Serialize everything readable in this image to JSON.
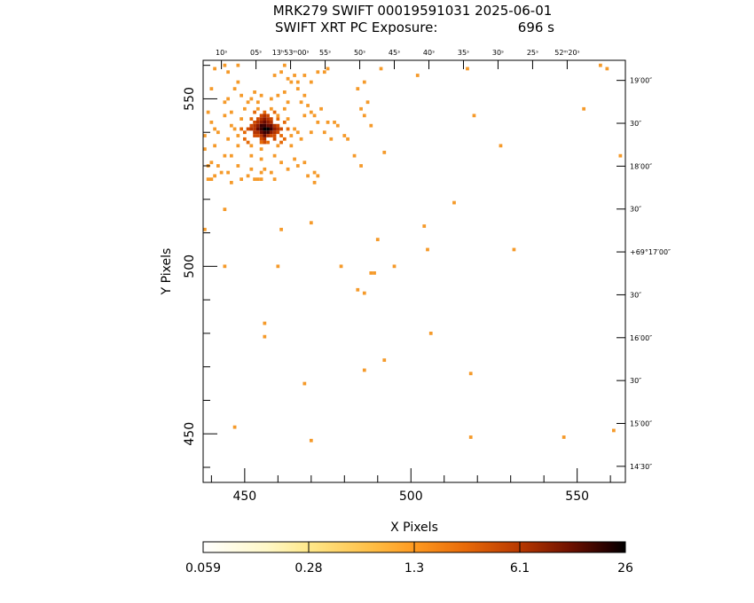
{
  "chart_data": {
    "type": "heatmap",
    "title": "MRK279 SWIFT 00019591031 2025-06-01",
    "subtitle_label": "SWIFT XRT PC Exposure:",
    "subtitle_value": "696 s",
    "xlabel": "X Pixels",
    "ylabel": "Y Pixels",
    "xlim": [
      437.5,
      564.5
    ],
    "ylim": [
      435.5,
      561.5
    ],
    "x_ticks": [
      450,
      500,
      550
    ],
    "y_ticks": [
      450,
      500,
      550
    ],
    "ra_labels": [
      {
        "x": 443,
        "text": "10ˢ"
      },
      {
        "x": 453.4,
        "text": "05ˢ"
      },
      {
        "x": 463.8,
        "text": "13ʰ53ᵐ00ˢ"
      },
      {
        "x": 474.2,
        "text": "55ˢ"
      },
      {
        "x": 484.6,
        "text": "50ˢ"
      },
      {
        "x": 495,
        "text": "45ˢ"
      },
      {
        "x": 505.4,
        "text": "40ˢ"
      },
      {
        "x": 515.8,
        "text": "35ˢ"
      },
      {
        "x": 526.2,
        "text": "30ˢ"
      },
      {
        "x": 536.6,
        "text": "25ˢ"
      },
      {
        "x": 547,
        "text": "52ᵐ20ˢ"
      }
    ],
    "dec_labels": [
      {
        "y": 555.5,
        "text": "19′00″"
      },
      {
        "y": 542.7,
        "text": "30″"
      },
      {
        "y": 529.9,
        "text": "18′00″"
      },
      {
        "y": 517.1,
        "text": "30″"
      },
      {
        "y": 504.3,
        "text": "+69°17′00″"
      },
      {
        "y": 491.5,
        "text": "30″"
      },
      {
        "y": 478.7,
        "text": "16′00″"
      },
      {
        "y": 465.9,
        "text": "30″"
      },
      {
        "y": 453.1,
        "text": "15′00″"
      },
      {
        "y": 440.3,
        "text": "14′30″"
      }
    ],
    "source_center": [
      456,
      541
    ],
    "colorbar": {
      "labels": [
        "0.059",
        "0.28",
        "1.3",
        "6.1",
        "26"
      ],
      "colors": [
        "#ffffff",
        "#fff0a0",
        "#ffc24a",
        "#ff8a1a",
        "#d94d00",
        "#8a1a00",
        "#3a0000",
        "#000000"
      ]
    },
    "pixels": [
      [
        456,
        541,
        26
      ],
      [
        457,
        541,
        20
      ],
      [
        456,
        542,
        18
      ],
      [
        455,
        541,
        14
      ],
      [
        457,
        540,
        14
      ],
      [
        456,
        540,
        12
      ],
      [
        455,
        542,
        11
      ],
      [
        458,
        541,
        10
      ],
      [
        456,
        543,
        8
      ],
      [
        454,
        541,
        7
      ],
      [
        457,
        542,
        8
      ],
      [
        455,
        540,
        7
      ],
      [
        458,
        542,
        6
      ],
      [
        454,
        542,
        5
      ],
      [
        456,
        539,
        6
      ],
      [
        458,
        540,
        5
      ],
      [
        459,
        541,
        4
      ],
      [
        453,
        541,
        3
      ],
      [
        456,
        544,
        4
      ],
      [
        455,
        543,
        4
      ],
      [
        457,
        543,
        4
      ],
      [
        455,
        539,
        3
      ],
      [
        457,
        539,
        3
      ],
      [
        459,
        542,
        3
      ],
      [
        453,
        542,
        2.5
      ],
      [
        454,
        540,
        3
      ],
      [
        458,
        543,
        3
      ],
      [
        454,
        543,
        2.5
      ],
      [
        459,
        540,
        2.5
      ],
      [
        460,
        541,
        2
      ],
      [
        452,
        541,
        2
      ],
      [
        456,
        545,
        2
      ],
      [
        456,
        538,
        2
      ],
      [
        455,
        544,
        2
      ],
      [
        457,
        544,
        2
      ],
      [
        453,
        540,
        2
      ],
      [
        459,
        539,
        1.8
      ],
      [
        455,
        538,
        1.8
      ],
      [
        458,
        539,
        1.8
      ],
      [
        454,
        539,
        1.8
      ],
      [
        460,
        542,
        1.6
      ],
      [
        452,
        542,
        1.6
      ],
      [
        460,
        540,
        1.5
      ],
      [
        453,
        543,
        1.5
      ],
      [
        458,
        544,
        1.5
      ],
      [
        454,
        544,
        1.5
      ],
      [
        457,
        545,
        1.4
      ],
      [
        455,
        545,
        1.4
      ],
      [
        461,
        541,
        1.3
      ],
      [
        451,
        541,
        1.3
      ],
      [
        456,
        537,
        1.3
      ],
      [
        453,
        539,
        1.2
      ],
      [
        459,
        538,
        1.2
      ],
      [
        457,
        537,
        1.1
      ],
      [
        455,
        537,
        1.1
      ],
      [
        461,
        539,
        1.1
      ],
      [
        450,
        540,
        1.0
      ],
      [
        462,
        543,
        1.0
      ],
      [
        452,
        544,
        1.0
      ],
      [
        460,
        544,
        1.0
      ],
      [
        459,
        546,
        0.9
      ],
      [
        453,
        546,
        0.9
      ],
      [
        456,
        546,
        0.9
      ],
      [
        461,
        537,
        0.9
      ],
      [
        451,
        537,
        0.9
      ],
      [
        449,
        541,
        0.8
      ],
      [
        463,
        541,
        0.8
      ],
      [
        450,
        538,
        0.8
      ],
      [
        462,
        538,
        0.8
      ],
      [
        448,
        539,
        0.7
      ],
      [
        464,
        539,
        0.7
      ],
      [
        452,
        536,
        0.7
      ],
      [
        460,
        536,
        0.7
      ],
      [
        449,
        544,
        0.7
      ],
      [
        463,
        544,
        0.7
      ],
      [
        454,
        547,
        0.6
      ],
      [
        458,
        547,
        0.6
      ],
      [
        447,
        541,
        0.6
      ],
      [
        465,
        541,
        0.6
      ],
      [
        455,
        535,
        0.6
      ],
      [
        446,
        542,
        0.5
      ],
      [
        466,
        540,
        0.5
      ],
      [
        448,
        536,
        0.5
      ],
      [
        464,
        536,
        0.5
      ],
      [
        450,
        547,
        0.5
      ],
      [
        462,
        547,
        0.5
      ],
      [
        452,
        533,
        0.5
      ],
      [
        459,
        533,
        0.5
      ],
      [
        455,
        532,
        0.5
      ],
      [
        465,
        532,
        0.5
      ],
      [
        445,
        538,
        0.5
      ],
      [
        467,
        538,
        0.5
      ],
      [
        444,
        545,
        0.5
      ],
      [
        468,
        545,
        0.5
      ],
      [
        442,
        540,
        0.5
      ],
      [
        470,
        540,
        0.5
      ],
      [
        441,
        536,
        0.5
      ],
      [
        446,
        533,
        0.5
      ],
      [
        448,
        530,
        0.5
      ],
      [
        452,
        529,
        0.5
      ],
      [
        455,
        528,
        0.5
      ],
      [
        458,
        528,
        0.5
      ],
      [
        461,
        531,
        0.5
      ],
      [
        463,
        529,
        0.5
      ],
      [
        466,
        530,
        0.5
      ],
      [
        468,
        531,
        0.5
      ],
      [
        469,
        527,
        0.5
      ],
      [
        471,
        528,
        0.5
      ],
      [
        444,
        533,
        0.5
      ],
      [
        440,
        531,
        0.5
      ],
      [
        439,
        530,
        0.5
      ],
      [
        442,
        530,
        0.5
      ],
      [
        441,
        527,
        0.5
      ],
      [
        439,
        526,
        0.5
      ],
      [
        440,
        526,
        0.5
      ],
      [
        443,
        528,
        0.5
      ],
      [
        445,
        528,
        0.5
      ],
      [
        446,
        525,
        0.5
      ],
      [
        449,
        526,
        0.5
      ],
      [
        451,
        527,
        0.5
      ],
      [
        453,
        526,
        0.5
      ],
      [
        454,
        526,
        0.5
      ],
      [
        455,
        526,
        0.5
      ],
      [
        456,
        529,
        0.5
      ],
      [
        459,
        526,
        0.5
      ],
      [
        438,
        539,
        0.5
      ],
      [
        438,
        535,
        0.5
      ],
      [
        440,
        543,
        0.5
      ],
      [
        441,
        541,
        0.5
      ],
      [
        439,
        546,
        0.5
      ],
      [
        444,
        549,
        0.5
      ],
      [
        445,
        550,
        0.5
      ],
      [
        446,
        546,
        0.5
      ],
      [
        447,
        553,
        0.5
      ],
      [
        448,
        555,
        0.5
      ],
      [
        449,
        551,
        0.5
      ],
      [
        451,
        549,
        0.5
      ],
      [
        452,
        550,
        0.5
      ],
      [
        453,
        552,
        0.5
      ],
      [
        454,
        549,
        0.5
      ],
      [
        455,
        551,
        0.5
      ],
      [
        458,
        550,
        0.5
      ],
      [
        460,
        551,
        0.5
      ],
      [
        462,
        552,
        0.5
      ],
      [
        463,
        549,
        0.5
      ],
      [
        464,
        555,
        0.5
      ],
      [
        465,
        557,
        0.5
      ],
      [
        466,
        553,
        0.5
      ],
      [
        467,
        549,
        0.5
      ],
      [
        468,
        551,
        0.5
      ],
      [
        469,
        548,
        0.5
      ],
      [
        470,
        546,
        0.5
      ],
      [
        471,
        545,
        0.5
      ],
      [
        472,
        543,
        0.5
      ],
      [
        473,
        547,
        0.5
      ],
      [
        474,
        540,
        0.5
      ],
      [
        475,
        543,
        0.5
      ],
      [
        476,
        538,
        0.5
      ],
      [
        477,
        543,
        0.5
      ],
      [
        478,
        542,
        0.5
      ],
      [
        480,
        539,
        0.5
      ],
      [
        481,
        538,
        0.5
      ],
      [
        466,
        555,
        0.5
      ],
      [
        468,
        557,
        0.5
      ],
      [
        470,
        555,
        0.5
      ],
      [
        472,
        558,
        0.5
      ],
      [
        474,
        558,
        0.5
      ],
      [
        475,
        559,
        0.5
      ],
      [
        461,
        558,
        0.5
      ],
      [
        462,
        560,
        0.5
      ],
      [
        463,
        556,
        0.5
      ],
      [
        459,
        557,
        0.5
      ],
      [
        441,
        559,
        0.5
      ],
      [
        444,
        560,
        0.5
      ],
      [
        445,
        558,
        0.5
      ],
      [
        448,
        560,
        0.5
      ],
      [
        440,
        553,
        0.5
      ],
      [
        484,
        553,
        0.5
      ],
      [
        486,
        555,
        0.5
      ],
      [
        487,
        549,
        0.5
      ],
      [
        485,
        547,
        0.5
      ],
      [
        486,
        545,
        0.5
      ],
      [
        483,
        533,
        0.5
      ],
      [
        485,
        530,
        0.5
      ],
      [
        488,
        542,
        0.5
      ],
      [
        460,
        545,
        0.5
      ],
      [
        471,
        525,
        0.5
      ],
      [
        472,
        527,
        0.5
      ],
      [
        491,
        559,
        0.5
      ],
      [
        502,
        557,
        0.5
      ],
      [
        517,
        559,
        0.5
      ],
      [
        557,
        560,
        0.5
      ],
      [
        559,
        559,
        0.5
      ],
      [
        519,
        545,
        0.5
      ],
      [
        527,
        536,
        0.5
      ],
      [
        552,
        547,
        0.5
      ],
      [
        563,
        533,
        0.5
      ],
      [
        492,
        534,
        0.5
      ],
      [
        513,
        519,
        0.5
      ],
      [
        504,
        512,
        0.5
      ],
      [
        505,
        505,
        0.5
      ],
      [
        490,
        508,
        0.5
      ],
      [
        444,
        517,
        0.5
      ],
      [
        438,
        511,
        0.5
      ],
      [
        461,
        511,
        0.5
      ],
      [
        470,
        513,
        0.5
      ],
      [
        460,
        500,
        0.5
      ],
      [
        444,
        500,
        0.5
      ],
      [
        479,
        500,
        0.5
      ],
      [
        495,
        500,
        0.5
      ],
      [
        488,
        498,
        0.5
      ],
      [
        489,
        498,
        0.5
      ],
      [
        484,
        493,
        0.5
      ],
      [
        486,
        492,
        0.5
      ],
      [
        531,
        505,
        0.5
      ],
      [
        456,
        483,
        0.5
      ],
      [
        456,
        479,
        0.5
      ],
      [
        506,
        480,
        0.5
      ],
      [
        492,
        472,
        0.5
      ],
      [
        486,
        469,
        0.5
      ],
      [
        518,
        468,
        0.5
      ],
      [
        468,
        465,
        0.5
      ],
      [
        447,
        452,
        0.5
      ],
      [
        470,
        448,
        0.5
      ],
      [
        518,
        449,
        0.5
      ],
      [
        546,
        449,
        0.5
      ],
      [
        561,
        451,
        0.5
      ]
    ]
  }
}
